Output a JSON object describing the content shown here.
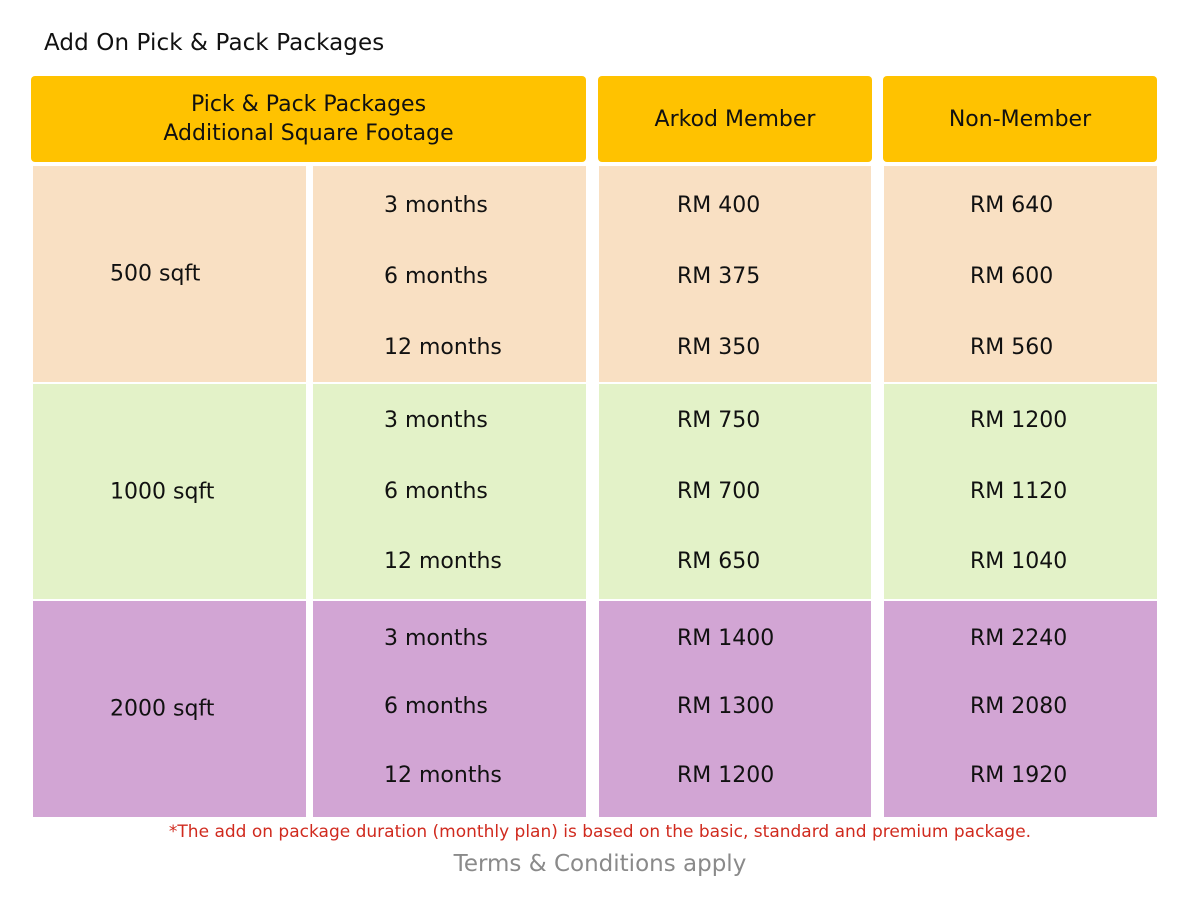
{
  "page_title": "Add On Pick & Pack Packages",
  "header": {
    "main_line1": "Pick & Pack Packages",
    "main_line2": "Additional Square Footage",
    "member": "Arkod Member",
    "non_member": "Non-Member"
  },
  "groups": [
    {
      "size": "500 sqft",
      "color": "#f9e0c3",
      "rows": [
        {
          "duration": "3 months",
          "member": "RM 400",
          "non_member": "RM 640"
        },
        {
          "duration": "6 months",
          "member": "RM 375",
          "non_member": "RM 600"
        },
        {
          "duration": "12 months",
          "member": "RM 350",
          "non_member": "RM 560"
        }
      ]
    },
    {
      "size": "1000 sqft",
      "color": "#e3f2c8",
      "rows": [
        {
          "duration": "3 months",
          "member": "RM 750",
          "non_member": "RM 1200"
        },
        {
          "duration": "6 months",
          "member": "RM 700",
          "non_member": "RM 1120"
        },
        {
          "duration": "12 months",
          "member": "RM 650",
          "non_member": "RM 1040"
        }
      ]
    },
    {
      "size": "2000 sqft",
      "color": "#d2a5d4",
      "rows": [
        {
          "duration": "3 months",
          "member": "RM 1400",
          "non_member": "RM 2240"
        },
        {
          "duration": "6 months",
          "member": "RM 1300",
          "non_member": "RM 2080"
        },
        {
          "duration": "12 months",
          "member": "RM 1200",
          "non_member": "RM 1920"
        }
      ]
    }
  ],
  "footnote": "*The add on package duration (monthly plan) is based on the basic, standard and premium package.",
  "terms": "Terms & Conditions apply",
  "colors": {
    "header": "#ffc200",
    "footnote": "#d02a1e",
    "terms": "#8a8a8a"
  }
}
